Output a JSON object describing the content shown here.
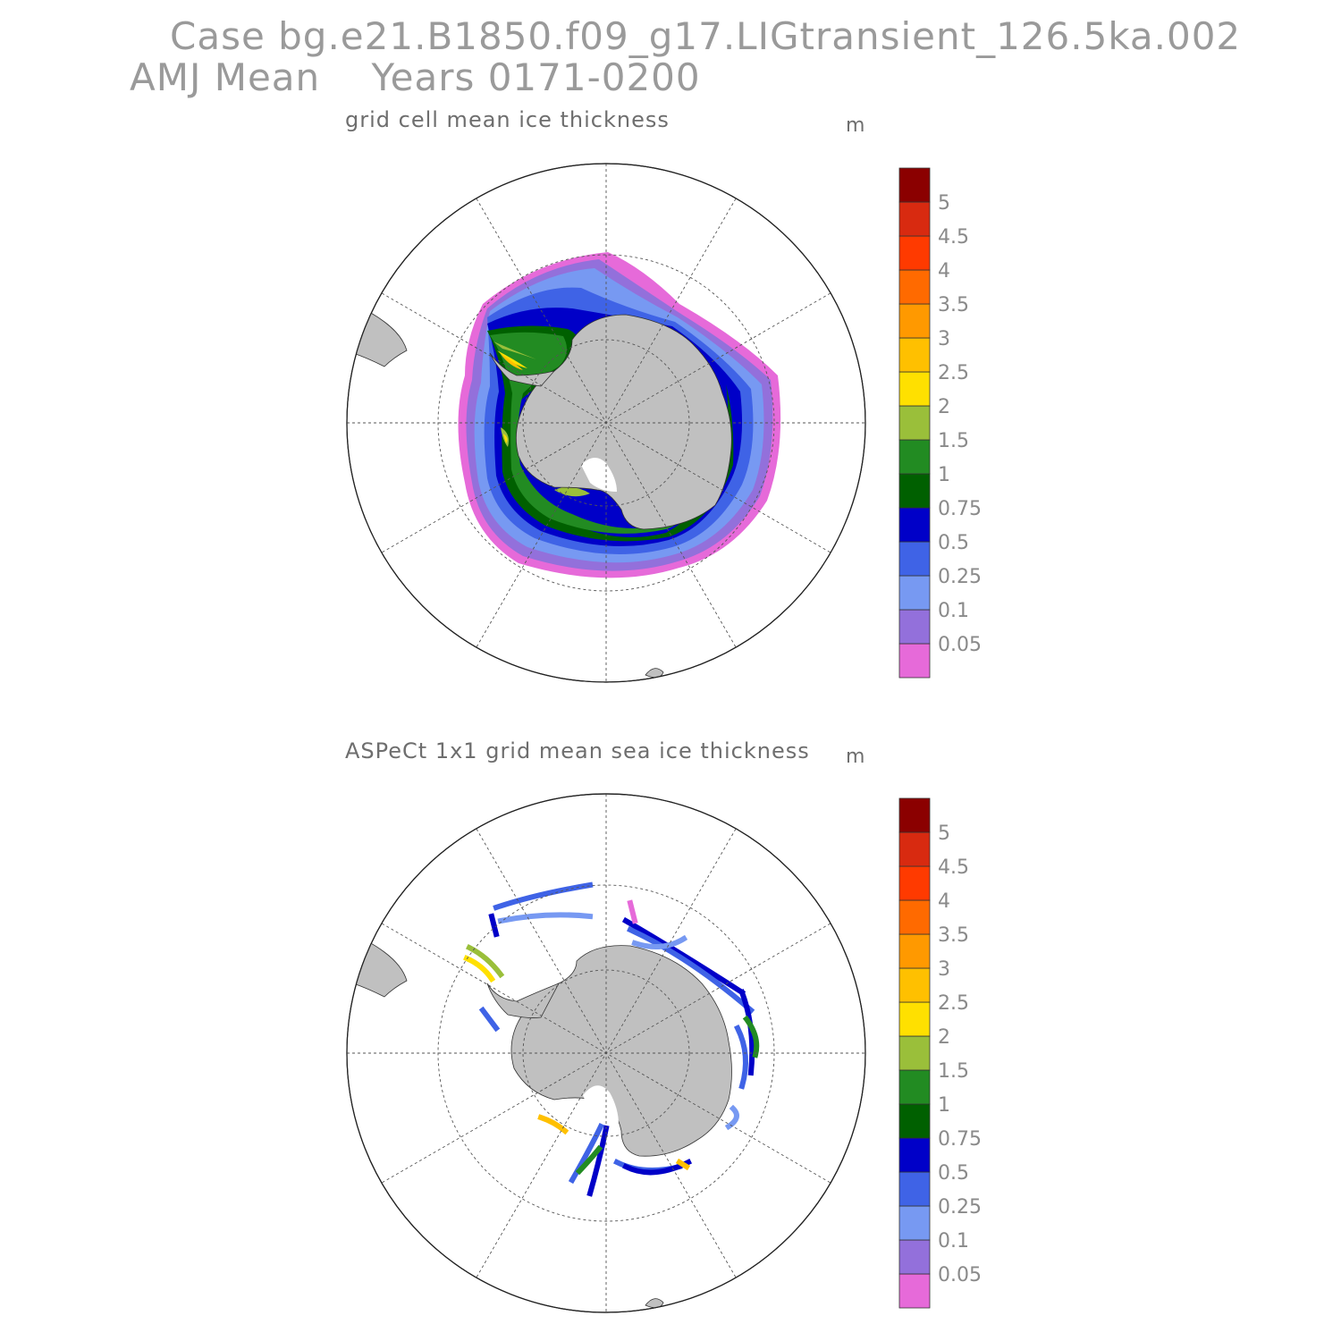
{
  "header": {
    "case_line": "Case bg.e21.B1850.f09_g17.LIGtransient_126.5ka.002",
    "period_line": "AMJ Mean    Years 0171-0200"
  },
  "panels": [
    {
      "title": "grid cell mean ice thickness",
      "units": "m"
    },
    {
      "title": "ASPeCt 1x1 grid mean sea ice thickness",
      "units": "m"
    }
  ],
  "colorbar": {
    "colors": [
      "#e66ad9",
      "#9370db",
      "#7799f2",
      "#3f63e6",
      "#0000c8",
      "#006000",
      "#228b22",
      "#9abf3a",
      "#ffe000",
      "#ffc000",
      "#ff9900",
      "#ff6a00",
      "#ff3a00",
      "#d82a10",
      "#8b0000"
    ],
    "labels": [
      "0.05",
      "0.1",
      "0.25",
      "0.5",
      "0.75",
      "1",
      "1.5",
      "2",
      "2.5",
      "3",
      "3.5",
      "4",
      "4.5",
      "5"
    ]
  },
  "map_colors": {
    "land": "#c0c0c0",
    "coast": "#333333",
    "grid": "#555555"
  }
}
